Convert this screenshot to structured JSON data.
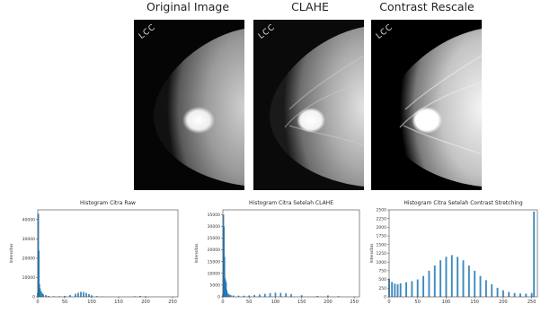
{
  "images": [
    {
      "title": "Original Image",
      "view_label": "LCC",
      "style": "original"
    },
    {
      "title": "CLAHE",
      "view_label": "LCC",
      "style": "clahe"
    },
    {
      "title": "Contrast Rescale",
      "view_label": "LCC",
      "style": "rescale"
    }
  ],
  "colors": {
    "bar": "#1f77b4",
    "axes": "#444444"
  },
  "chart_data": [
    {
      "type": "bar",
      "title": "Histogram Citra Raw",
      "xlabel": "",
      "ylabel": "Intensitas",
      "xlim": [
        0,
        260
      ],
      "ylim": [
        0,
        45000
      ],
      "xticks": [
        0,
        50,
        100,
        150,
        200,
        250
      ],
      "yticks": [
        0,
        10000,
        20000,
        30000,
        40000
      ],
      "ytick_labels": [
        "0",
        "10000",
        "20000",
        "30000",
        "40000"
      ],
      "x": [
        0,
        1,
        2,
        3,
        4,
        6,
        8,
        10,
        15,
        20,
        30,
        40,
        50,
        60,
        70,
        75,
        80,
        85,
        90,
        95,
        100,
        110,
        120,
        150,
        180,
        190,
        200,
        220,
        250
      ],
      "values": [
        2000,
        43000,
        24000,
        6500,
        4500,
        3000,
        2000,
        1400,
        900,
        500,
        300,
        300,
        500,
        900,
        1600,
        2100,
        2600,
        2500,
        2000,
        1400,
        800,
        400,
        200,
        100,
        300,
        500,
        300,
        100,
        50
      ]
    },
    {
      "type": "bar",
      "title": "Histogram Citra Setelah CLAHE",
      "xlabel": "",
      "ylabel": "Intensitas",
      "xlim": [
        0,
        260
      ],
      "ylim": [
        0,
        37000
      ],
      "xticks": [
        0,
        50,
        100,
        150,
        200,
        250
      ],
      "yticks": [
        0,
        5000,
        10000,
        15000,
        20000,
        25000,
        30000,
        35000
      ],
      "ytick_labels": [
        "0",
        "5000",
        "10000",
        "15000",
        "20000",
        "25000",
        "30000",
        "35000"
      ],
      "x": [
        0,
        1,
        2,
        3,
        4,
        5,
        6,
        7,
        8,
        10,
        12,
        15,
        20,
        30,
        40,
        50,
        60,
        70,
        80,
        90,
        100,
        110,
        120,
        130,
        150,
        180,
        200,
        220,
        250
      ],
      "values": [
        1000,
        35000,
        30000,
        17000,
        8000,
        7000,
        6000,
        3000,
        2000,
        1300,
        1000,
        800,
        600,
        500,
        500,
        600,
        800,
        1000,
        1300,
        1600,
        1800,
        1700,
        1500,
        1200,
        700,
        400,
        600,
        300,
        100
      ]
    },
    {
      "type": "bar",
      "title": "Histogram Citra Setelah Contrast Stretching",
      "xlabel": "",
      "ylabel": "Intensitas",
      "xlim": [
        0,
        260
      ],
      "ylim": [
        0,
        2500
      ],
      "xticks": [
        0,
        50,
        100,
        150,
        200,
        250
      ],
      "yticks": [
        0,
        250,
        500,
        750,
        1000,
        1250,
        1500,
        1750,
        2000,
        2250,
        2500
      ],
      "ytick_labels": [
        "0",
        "250",
        "500",
        "750",
        "1000",
        "1250",
        "1500",
        "1750",
        "2000",
        "2250",
        "2500"
      ],
      "x": [
        0,
        5,
        10,
        15,
        20,
        30,
        40,
        50,
        60,
        70,
        80,
        90,
        100,
        110,
        120,
        130,
        140,
        150,
        160,
        170,
        180,
        190,
        200,
        210,
        220,
        230,
        240,
        250,
        254
      ],
      "values": [
        520,
        430,
        380,
        360,
        390,
        420,
        450,
        500,
        600,
        750,
        900,
        1050,
        1150,
        1200,
        1150,
        1050,
        900,
        750,
        600,
        480,
        360,
        260,
        190,
        140,
        110,
        95,
        90,
        110,
        2450
      ]
    }
  ]
}
